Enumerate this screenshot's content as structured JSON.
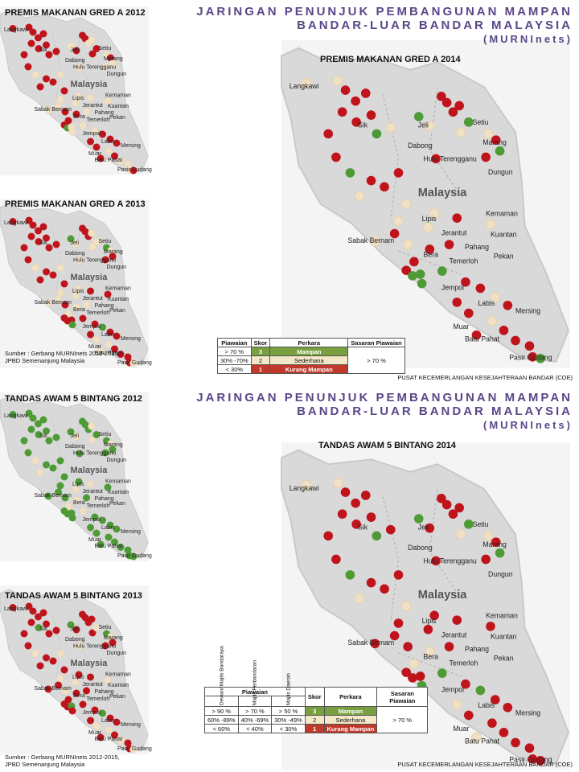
{
  "header": {
    "line1": "JARINGAN PENUNJUK PEMBANGUNAN MAMPAN",
    "line2": "BANDAR-LUAR BANDAR MALAYSIA",
    "line3": "(MURNInets)"
  },
  "colors": {
    "green": "#4e9a35",
    "beige": "#f0e0c4",
    "red": "#c0141c",
    "title_purple": "#5a4688",
    "land": "#d9d9d9",
    "sea": "#f4f4f4"
  },
  "top": {
    "map_2012_title": "PREMIS MAKANAN GRED A  2012",
    "map_2013_title": "PREMIS MAKANAN GRED A  2013",
    "map_2014_title": "PREMIS MAKANAN GRED A  2014",
    "source_line1": "Sumber : Gerbang MURNInets 2012-2015,",
    "source_line2": "JPBD Semenanjung Malaysia",
    "coe": "PUSAT KECEMERLANGAN KESEJAHTERAAN BANDAR (COE)",
    "legend": {
      "h_piawaian": "Piawaian",
      "h_skor": "Skor",
      "h_perkara": "Perkara",
      "h_sasaran": "Sasaran Piawaian",
      "rows": [
        {
          "piawaian": "> 70 %",
          "skor": "3",
          "perkara": "Mampan"
        },
        {
          "piawaian": "30% -70%",
          "skor": "2",
          "perkara": "Sederhana"
        },
        {
          "piawaian": "< 30%",
          "skor": "1",
          "perkara": "Kurang Mampan"
        }
      ],
      "sasaran": "> 70 %"
    }
  },
  "bottom": {
    "map_2012_title": "TANDAS AWAM 5 BINTANG 2012",
    "map_2013_title": "TANDAS AWAM 5 BINTANG 2013",
    "map_2014_title": "TANDAS AWAM 5 BINTANG 2014",
    "source_line1": "Sumber : Gerbang MURNInets 2012-2015,",
    "source_line2": "JPBD Semenanjung Malaysia",
    "coe": "PUSAT KECEMERLANGAN KESEJAHTERAAN BANDAR (COE)",
    "legend": {
      "h_piawaian": "Piawaian",
      "h_dewan": "Dewan/ Majlis Bandaraya",
      "h_perbandaran": "Majlis Perbandaran",
      "h_daerah": "Majlis Daerah",
      "h_skor": "Skor",
      "h_perkara": "Perkara",
      "h_sasaran": "Sasaran Piawaian",
      "rows": [
        {
          "dewan": "> 90 %",
          "perbandaran": "> 70 %",
          "daerah": "> 50 %",
          "skor": "3",
          "perkara": "Mampan"
        },
        {
          "dewan": "60% -89%",
          "perbandaran": "40% -69%",
          "daerah": "30% -49%",
          "skor": "2",
          "perkara": "Sederhana"
        },
        {
          "dewan": "< 60%",
          "perbandaran": "< 40%",
          "daerah": "< 30%",
          "skor": "1",
          "perkara": "Kurang Mampan"
        }
      ],
      "sasaran": "> 70 %"
    }
  },
  "places": {
    "langkawi": "Langkawi",
    "sik": "Sik",
    "jeli": "Jeli",
    "dabong": "Dabong",
    "setiu": "Setiu",
    "marang": "Marang",
    "hulu": "Hulu Terengganu",
    "dungun": "Dungun",
    "malaysia": "Malaysia",
    "kemaman": "Kemaman",
    "lipis": "Lipis",
    "jerantut": "Jerantut",
    "kuantan": "Kuantan",
    "sabak": "Sabak Bernam",
    "pekan": "Pekan",
    "bera": "Bera",
    "temerloh": "Temerloh",
    "pahang": "Pahang",
    "jempol": "Jempol",
    "labis": "Labis",
    "mersing": "Mersing",
    "muar": "Muar",
    "batu_pahat": "Batu Pahat",
    "pasir_gudang": "Pasir Gudang"
  }
}
